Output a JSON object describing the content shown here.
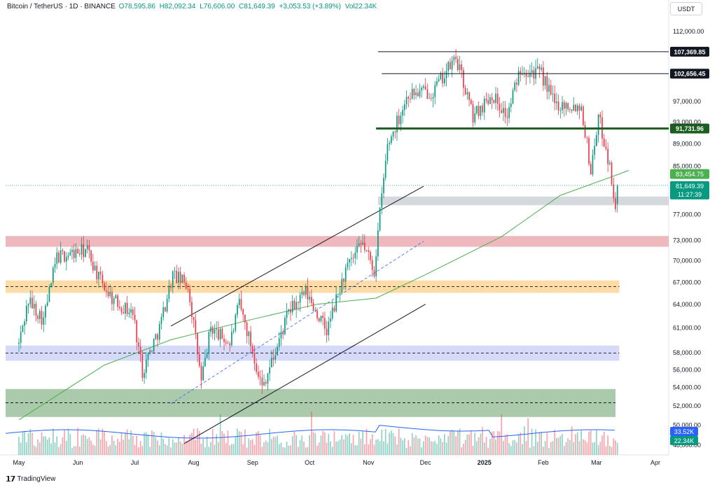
{
  "header": {
    "symbol": "Bitcoin / TetherUS · 1D · BINANCE",
    "open": "O78,595.86",
    "high": "H82,092.34",
    "low": "L76,606.00",
    "close": "C81,649.39",
    "change": "+3,053.53 (+3.89%)",
    "volume": "Vol22.34K"
  },
  "currency_button": "USDT",
  "branding": {
    "logo": "tradingview-logo-icon",
    "name": "TradingView"
  },
  "colors": {
    "up": "#089981",
    "down": "#f23645",
    "ma": "#4caf50",
    "vol_ma": "#2962ff",
    "res_line": "#1b5e20",
    "zone_red": "#e8a0a6",
    "zone_orange": "#ffcf8a",
    "zone_blue": "#c5cdf5",
    "zone_green": "#8fb890",
    "zone_gray": "#c7ccd1"
  },
  "chart_data": {
    "type": "candlestick",
    "title": "Bitcoin / TetherUS · 1D · BINANCE",
    "y_axis": {
      "ylim": [
        47000,
        116000
      ],
      "ticks": [
        "112,000.00",
        "97,000.00",
        "93,000.00",
        "89,000.00",
        "85,000.00",
        "77,000.00",
        "73,000.00",
        "70,000.00",
        "67,000.00",
        "64,000.00",
        "61,000.00",
        "58,000.00",
        "56,000.00",
        "54,000.00",
        "52,000.00",
        "50,000.00",
        "48,000.00"
      ]
    },
    "x_axis": {
      "labels": [
        "May",
        "Jun",
        "Jul",
        "Aug",
        "Sep",
        "Oct",
        "Nov",
        "Dec",
        "2025",
        "Feb",
        "Mar",
        "Apr"
      ]
    },
    "close_path": [
      [
        "2024-05-01",
        59000
      ],
      [
        "2024-05-06",
        64500
      ],
      [
        "2024-05-14",
        62000
      ],
      [
        "2024-05-21",
        70500
      ],
      [
        "2024-06-06",
        71500
      ],
      [
        "2024-06-12",
        67500
      ],
      [
        "2024-06-20",
        64500
      ],
      [
        "2024-06-30",
        62800
      ],
      [
        "2024-07-05",
        55800
      ],
      [
        "2024-07-14",
        61000
      ],
      [
        "2024-07-21",
        68000
      ],
      [
        "2024-07-29",
        66500
      ],
      [
        "2024-08-05",
        54500
      ],
      [
        "2024-08-10",
        61000
      ],
      [
        "2024-08-20",
        59000
      ],
      [
        "2024-08-25",
        64000
      ],
      [
        "2024-09-06",
        54000
      ],
      [
        "2024-09-13",
        58000
      ],
      [
        "2024-09-20",
        63000
      ],
      [
        "2024-09-29",
        65500
      ],
      [
        "2024-10-10",
        60500
      ],
      [
        "2024-10-20",
        68500
      ],
      [
        "2024-10-29",
        72500
      ],
      [
        "2024-11-04",
        68500
      ],
      [
        "2024-11-11",
        88500
      ],
      [
        "2024-11-22",
        98500
      ],
      [
        "2024-12-05",
        99000
      ],
      [
        "2024-12-17",
        106000
      ],
      [
        "2024-12-26",
        94000
      ],
      [
        "2025-01-05",
        98500
      ],
      [
        "2025-01-13",
        94000
      ],
      [
        "2025-01-20",
        104000
      ],
      [
        "2025-01-31",
        102500
      ],
      [
        "2025-02-07",
        96500
      ],
      [
        "2025-02-21",
        96000
      ],
      [
        "2025-02-26",
        84000
      ],
      [
        "2025-03-02",
        94000
      ],
      [
        "2025-03-07",
        86500
      ],
      [
        "2025-03-11",
        78500
      ],
      [
        "2025-03-12",
        81649.39
      ]
    ],
    "horizontal_levels": [
      {
        "label": "107,369.85",
        "value": 107369.85
      },
      {
        "label": "102,656.45",
        "value": 102656.45
      },
      {
        "label": "91,731.96",
        "value": 91731.96
      }
    ],
    "price_tags": [
      {
        "label": "83,454.75",
        "value": 83454.75,
        "meaning": "moving average"
      },
      {
        "label": "81,649.39",
        "value": 81649.39,
        "meaning": "last price"
      },
      {
        "label": "11:27:39",
        "meaning": "bar countdown"
      }
    ],
    "zones": [
      {
        "name": "red-zone",
        "low": 72000,
        "high": 73600
      },
      {
        "name": "orange-zone",
        "low": 65500,
        "high": 67200
      },
      {
        "name": "blue-zone",
        "low": 57000,
        "high": 58800
      },
      {
        "name": "green-zone",
        "low": 50800,
        "high": 53800
      },
      {
        "name": "gray-zone",
        "low": 78400,
        "high": 79800
      }
    ],
    "channel": {
      "upper": [
        [
          "2024-07-20",
          61200
        ],
        [
          "2024-11-30",
          81500
        ]
      ],
      "lower": [
        [
          "2024-07-27",
          48100
        ],
        [
          "2024-12-01",
          64000
        ]
      ]
    },
    "volume": {
      "ma_last_label": "33.52K",
      "last_label": "22.34K"
    },
    "legend": "none",
    "grid": false
  }
}
